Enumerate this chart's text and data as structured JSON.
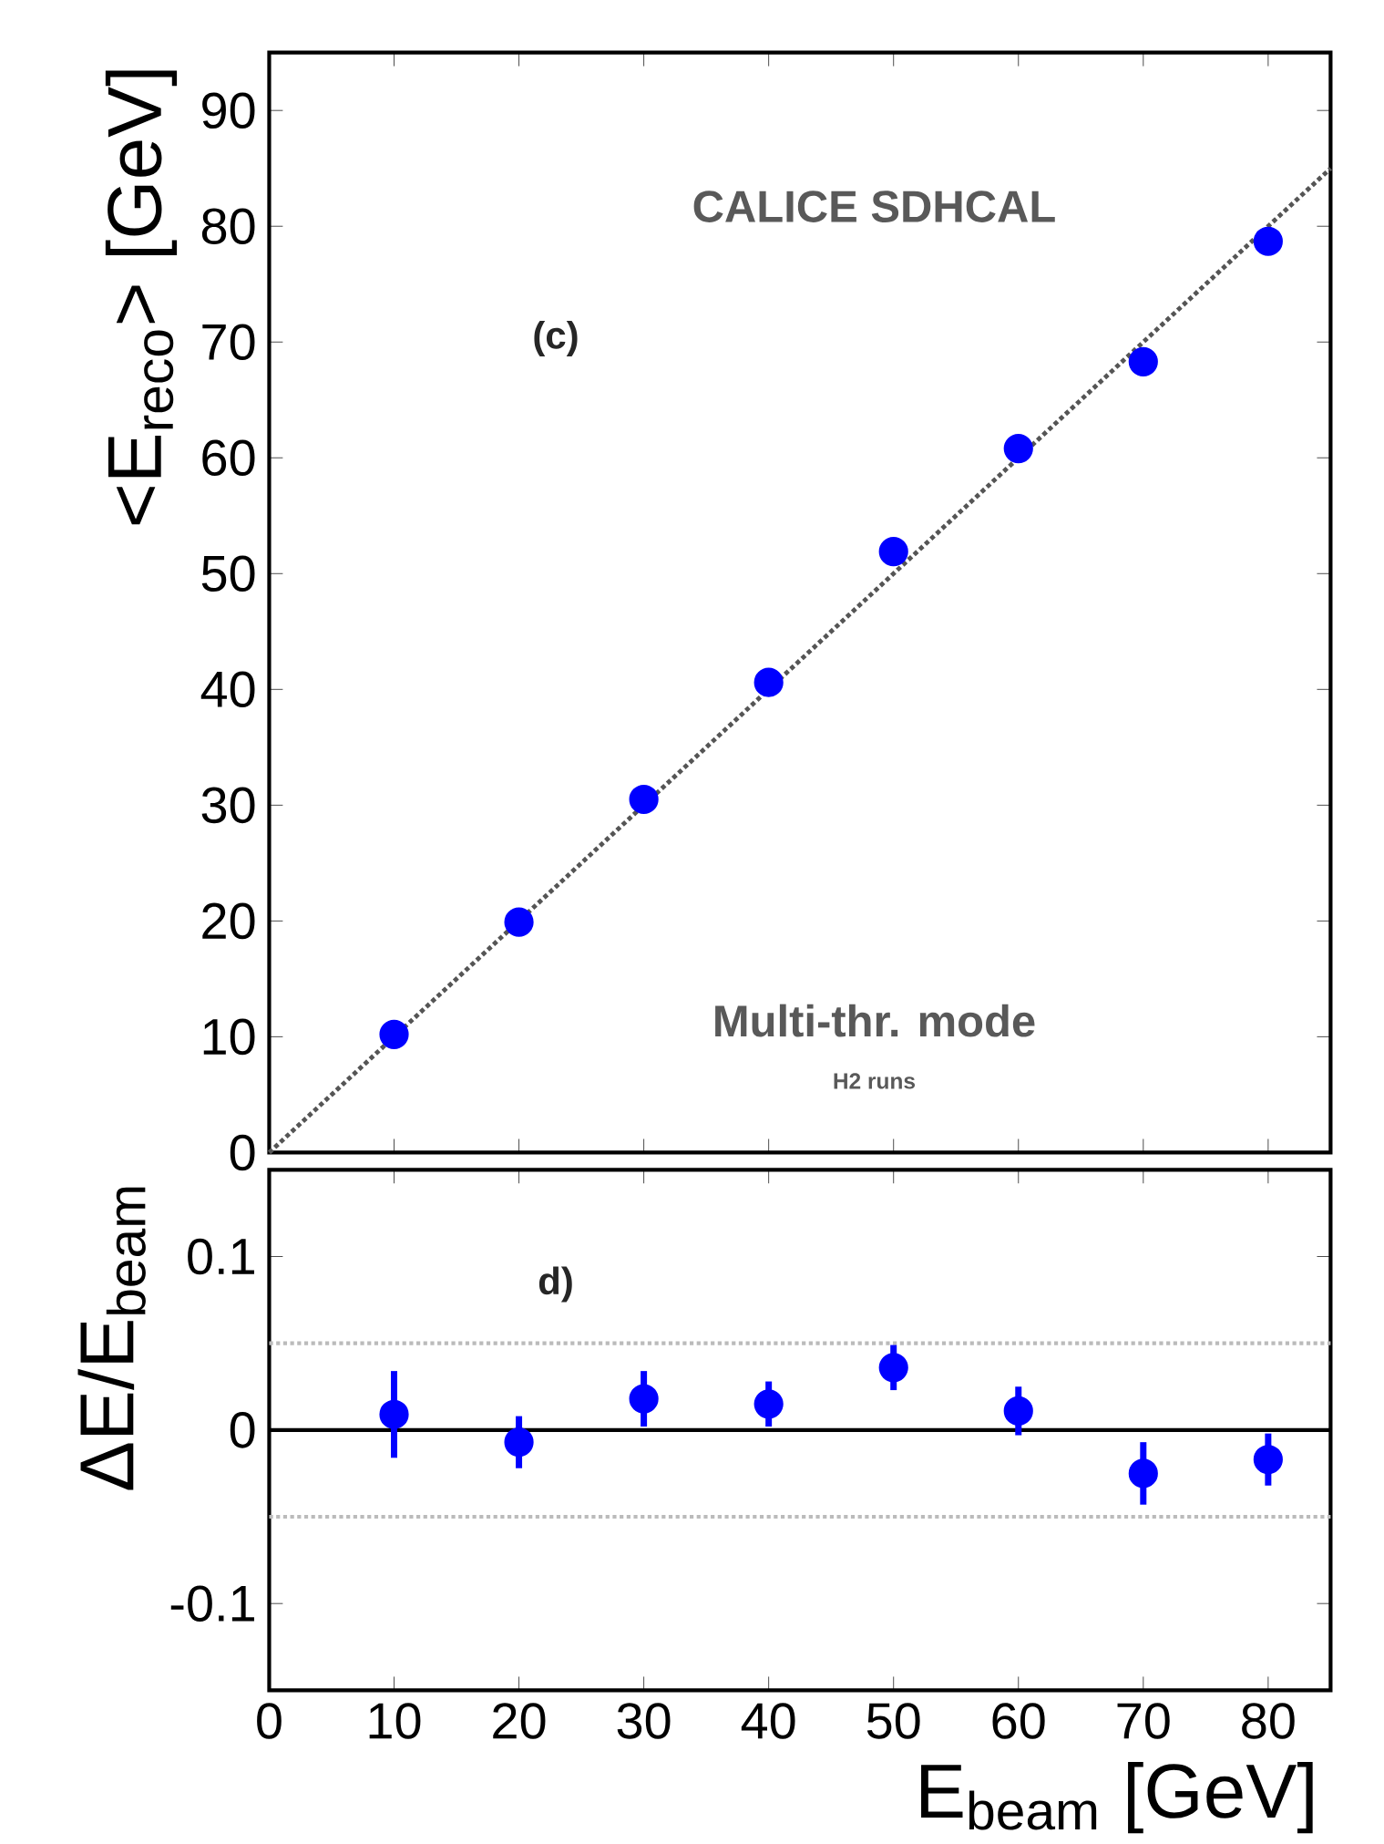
{
  "chart_data": [
    {
      "type": "scatter",
      "ylabel": "<E$_{reco}$> [GeV]",
      "annotations": [
        "CALICE SDHCAL",
        "(c)",
        "Multi-thr. mode",
        "H2 runs"
      ],
      "xlim": [
        0,
        85
      ],
      "ylim": [
        0,
        95
      ],
      "xticks": [
        0,
        10,
        20,
        30,
        40,
        50,
        60,
        70,
        80
      ],
      "yticks": [
        0,
        10,
        20,
        30,
        40,
        50,
        60,
        70,
        80,
        90
      ],
      "tick_labels": "y",
      "series": [
        {
          "type": "scatter",
          "color": "#0000ff",
          "marker": "circle",
          "x": [
            10,
            20,
            30,
            40,
            50,
            60,
            70,
            80
          ],
          "values": [
            10.2,
            19.9,
            30.5,
            40.6,
            51.9,
            60.8,
            68.3,
            78.7
          ]
        },
        {
          "type": "line",
          "color": "#555555",
          "line_style": "dotted",
          "marker": "none",
          "x": [
            0,
            85
          ],
          "values": [
            0,
            85
          ]
        }
      ]
    },
    {
      "type": "scatter",
      "xlabel": "E$_{beam}$ [GeV]",
      "ylabel": "ΔE/E$_{beam}$",
      "annotations": [
        "d)"
      ],
      "xlim": [
        0,
        85
      ],
      "ylim": [
        -0.15,
        0.15
      ],
      "xticks": [
        0,
        10,
        20,
        30,
        40,
        50,
        60,
        70,
        80
      ],
      "yticks": [
        -0.1,
        0,
        0.1
      ],
      "ref_lines": [
        {
          "axis": "y",
          "value": 0,
          "color": "#000000",
          "line_style": "solid"
        },
        {
          "axis": "y",
          "value": 0.05,
          "color": "#bbbbbb",
          "line_style": "dotted"
        },
        {
          "axis": "y",
          "value": -0.05,
          "color": "#bbbbbb",
          "line_style": "dotted"
        }
      ],
      "series": [
        {
          "type": "scatter",
          "color": "#0000ff",
          "marker": "circle",
          "x": [
            10,
            20,
            30,
            40,
            50,
            60,
            70,
            80
          ],
          "values": [
            0.009,
            -0.007,
            0.018,
            0.015,
            0.036,
            0.011,
            -0.025,
            -0.017
          ],
          "errors": [
            0.025,
            0.015,
            0.016,
            0.013,
            0.013,
            0.014,
            0.018,
            0.015
          ]
        }
      ]
    }
  ]
}
